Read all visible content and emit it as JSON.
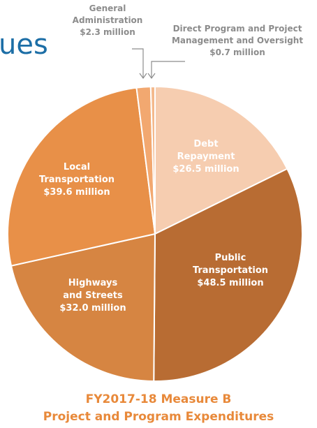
{
  "heading_fragment": "ues",
  "caption": {
    "line1": "FY2017-18 Measure B",
    "line2": "Project and  Program Expenditures"
  },
  "chart_data": {
    "type": "pie",
    "unit": "million",
    "slices": [
      {
        "label_lines": [
          "Debt",
          "Repayment"
        ],
        "value": 26.5,
        "value_text": "$26.5 million",
        "color": "#f6cdb0",
        "text_color": "#ffffff"
      },
      {
        "label_lines": [
          "Public",
          "Transportation"
        ],
        "value": 48.5,
        "value_text": "$48.5 million",
        "color": "#b86c33",
        "text_color": "#ffffff"
      },
      {
        "label_lines": [
          "Highways",
          "and Streets"
        ],
        "value": 32.0,
        "value_text": "$32.0 million",
        "color": "#d68542",
        "text_color": "#ffffff"
      },
      {
        "label_lines": [
          "Local",
          "Transportation"
        ],
        "value": 39.6,
        "value_text": "$39.6 million",
        "color": "#e89048",
        "text_color": "#ffffff"
      },
      {
        "label_lines": [
          "General",
          "Administration"
        ],
        "value": 2.3,
        "value_text": "$2.3 million",
        "color": "#f2a870",
        "text_color": "#8c8c8c"
      },
      {
        "label_lines": [
          "Direct Program and Project",
          "Management and Oversight"
        ],
        "value": 0.7,
        "value_text": "$0.7 million",
        "color": "#f4b98c",
        "text_color": "#8c8c8c"
      }
    ]
  }
}
